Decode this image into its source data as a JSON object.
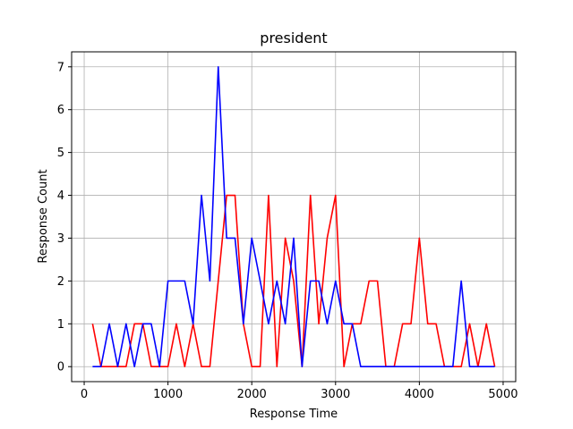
{
  "chart_data": {
    "type": "line",
    "title": "president",
    "xlabel": "Response Time",
    "ylabel": "Response Count",
    "xlim": [
      -150,
      5150
    ],
    "ylim": [
      -0.35,
      7.35
    ],
    "x_ticks": [
      0,
      1000,
      2000,
      3000,
      4000,
      5000
    ],
    "x_tick_labels": [
      "0",
      "1000",
      "2000",
      "3000",
      "4000",
      "5000"
    ],
    "y_ticks": [
      0,
      1,
      2,
      3,
      4,
      5,
      6,
      7
    ],
    "y_tick_labels": [
      "0",
      "1",
      "2",
      "3",
      "4",
      "5",
      "6",
      "7"
    ],
    "grid": true,
    "legend": "none",
    "x": [
      100,
      200,
      300,
      400,
      500,
      600,
      700,
      800,
      900,
      1000,
      1100,
      1200,
      1300,
      1400,
      1500,
      1600,
      1700,
      1800,
      1900,
      2000,
      2100,
      2200,
      2300,
      2400,
      2500,
      2600,
      2700,
      2800,
      2900,
      3000,
      3100,
      3200,
      3300,
      3400,
      3500,
      3600,
      3700,
      3800,
      3900,
      4000,
      4100,
      4200,
      4300,
      4400,
      4500,
      4600,
      4700,
      4800,
      4900
    ],
    "series": [
      {
        "color": "#ff0000",
        "values": [
          1,
          0,
          0,
          0,
          0,
          1,
          1,
          0,
          0,
          0,
          1,
          0,
          1,
          0,
          0,
          2,
          4,
          4,
          1,
          0,
          0,
          4,
          0,
          3,
          2,
          0,
          4,
          1,
          3,
          4,
          0,
          1,
          1,
          2,
          2,
          0,
          0,
          1,
          1,
          3,
          1,
          1,
          0,
          0,
          0,
          1,
          0,
          1,
          0
        ]
      },
      {
        "color": "#0000ff",
        "values": [
          0,
          0,
          1,
          0,
          1,
          0,
          1,
          1,
          0,
          2,
          2,
          2,
          1,
          4,
          2,
          7,
          3,
          3,
          1,
          3,
          2,
          1,
          2,
          1,
          3,
          0,
          2,
          2,
          1,
          2,
          1,
          1,
          0,
          0,
          0,
          0,
          0,
          0,
          0,
          0,
          0,
          0,
          0,
          0,
          2,
          0,
          0,
          0,
          0
        ]
      }
    ]
  }
}
